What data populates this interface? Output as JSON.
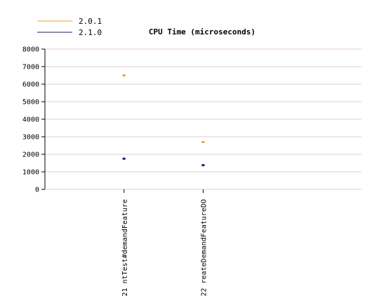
{
  "chart_data": {
    "type": "scatter",
    "title": "CPU Time (microseconds)",
    "xlabel": "",
    "ylabel": "",
    "ylim": [
      0,
      8000
    ],
    "y_ticks": [
      "0",
      "1000",
      "2000",
      "3000",
      "4000",
      "5000",
      "6000",
      "7000",
      "8000"
    ],
    "grid": true,
    "legend_position": "top-left",
    "categories": [
      "21 ntTest#demandFeature",
      "22 reateDemandFeatureDO"
    ],
    "series": [
      {
        "name": "2.0.1",
        "color": "#e8a52c",
        "values": [
          6500,
          2700
        ]
      },
      {
        "name": "2.1.0",
        "color": "#1a1a80",
        "values": [
          1750,
          1380
        ]
      }
    ]
  },
  "colors": {
    "gridline": "#e6c8c8",
    "axis": "#000000"
  }
}
